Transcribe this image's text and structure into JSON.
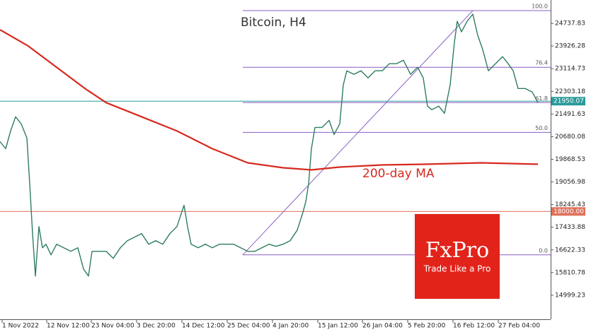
{
  "chart_data": {
    "type": "line",
    "title": "Bitcoin, H4",
    "annotation": "200-day MA",
    "xlim": [
      0,
      778
    ],
    "ylim": [
      14137,
      25575
    ],
    "xticks": [
      {
        "value": 3,
        "label": "1 Nov 2022"
      },
      {
        "value": 66,
        "label": "12 Nov 12:00"
      },
      {
        "value": 129,
        "label": "23 Nov 04:00"
      },
      {
        "value": 193,
        "label": "3 Dec 20:00"
      },
      {
        "value": 257,
        "label": "14 Dec 12:00"
      },
      {
        "value": 321,
        "label": "25 Dec 04:00"
      },
      {
        "value": 385,
        "label": "4 Jan 20:00"
      },
      {
        "value": 449,
        "label": "15 Jan 12:00"
      },
      {
        "value": 512,
        "label": "26 Jan 04:00"
      },
      {
        "value": 576,
        "label": "5 Feb 20:00"
      },
      {
        "value": 640,
        "label": "16 Feb 12:00"
      },
      {
        "value": 704,
        "label": "27 Feb 04:00"
      }
    ],
    "yticks": [
      24737.83,
      23926.28,
      23114.73,
      22303.18,
      21491.63,
      20680.08,
      19868.53,
      19056.98,
      18245.43,
      17433.88,
      16622.33,
      15810.78,
      14999.23
    ],
    "series": [
      {
        "name": "Bitcoin",
        "color": "#2f7d5f",
        "x": [
          0,
          8,
          15,
          22,
          30,
          38,
          42,
          46,
          50,
          55,
          60,
          65,
          72,
          80,
          90,
          100,
          110,
          118,
          125,
          130,
          140,
          150,
          160,
          170,
          180,
          190,
          200,
          210,
          220,
          230,
          240,
          250,
          255,
          260,
          265,
          270,
          280,
          290,
          300,
          310,
          320,
          330,
          340,
          350,
          360,
          370,
          380,
          390,
          400,
          410,
          420,
          428,
          432,
          436,
          440,
          445,
          455,
          465,
          472,
          480,
          485,
          490,
          500,
          510,
          520,
          530,
          540,
          550,
          560,
          570,
          580,
          590,
          598,
          604,
          610,
          620,
          628,
          632,
          636,
          642,
          646,
          652,
          660,
          668,
          675,
          682,
          690,
          700,
          710,
          718,
          725,
          732,
          742,
          752,
          760
        ],
        "values": [
          20503,
          20249,
          20883,
          21391,
          21137,
          20630,
          18981,
          17206,
          15685,
          17460,
          16699,
          16826,
          16445,
          16826,
          16699,
          16572,
          16699,
          15938,
          15685,
          16572,
          16572,
          16572,
          16318,
          16699,
          16953,
          17079,
          17206,
          16826,
          16953,
          16826,
          17206,
          17460,
          17840,
          18221,
          17460,
          16826,
          16699,
          16826,
          16699,
          16826,
          16826,
          16826,
          16699,
          16572,
          16572,
          16699,
          16826,
          16750,
          16826,
          16953,
          17333,
          17967,
          18347,
          18981,
          20249,
          21010,
          21010,
          21264,
          20757,
          21137,
          22532,
          23039,
          22912,
          23039,
          22785,
          23039,
          23039,
          23293,
          23293,
          23419,
          22912,
          23166,
          22785,
          21771,
          21644,
          21771,
          21517,
          22025,
          22532,
          24053,
          24814,
          24434,
          24814,
          25068,
          24307,
          23800,
          23039,
          23293,
          23546,
          23293,
          23039,
          22405,
          22405,
          22278,
          21898
        ]
      },
      {
        "name": "200-day MA",
        "color": "#d62a1e",
        "x": [
          0,
          40,
          80,
          120,
          150,
          200,
          250,
          300,
          350,
          400,
          440,
          480,
          540,
          600,
          680,
          720,
          760
        ],
        "values": [
          24510,
          23926,
          23166,
          22405,
          21898,
          21391,
          20883,
          20249,
          19742,
          19565,
          19489,
          19590,
          19666,
          19691,
          19742,
          19717,
          19691
        ]
      }
    ],
    "fib_levels": [
      {
        "name": "100.0",
        "value": 25194
      },
      {
        "name": "76.4",
        "value": 23166
      },
      {
        "name": "61.8",
        "value": 21898
      },
      {
        "name": "50.0",
        "value": 20832
      },
      {
        "name": "0.0",
        "value": 16445
      }
    ],
    "fib_start": 343,
    "fib_trend": {
      "x": [
        343,
        668
      ],
      "values": [
        16445,
        25194
      ]
    },
    "horizontal_lines": [
      {
        "value": 21950.07,
        "color": "#2a9a9a"
      },
      {
        "value": 18000,
        "label": "18000.00",
        "color": "#e0705a"
      }
    ],
    "logo": {
      "title": "FxPro",
      "tagline": "Trade Like a Pro",
      "color": "#e2231a"
    }
  }
}
